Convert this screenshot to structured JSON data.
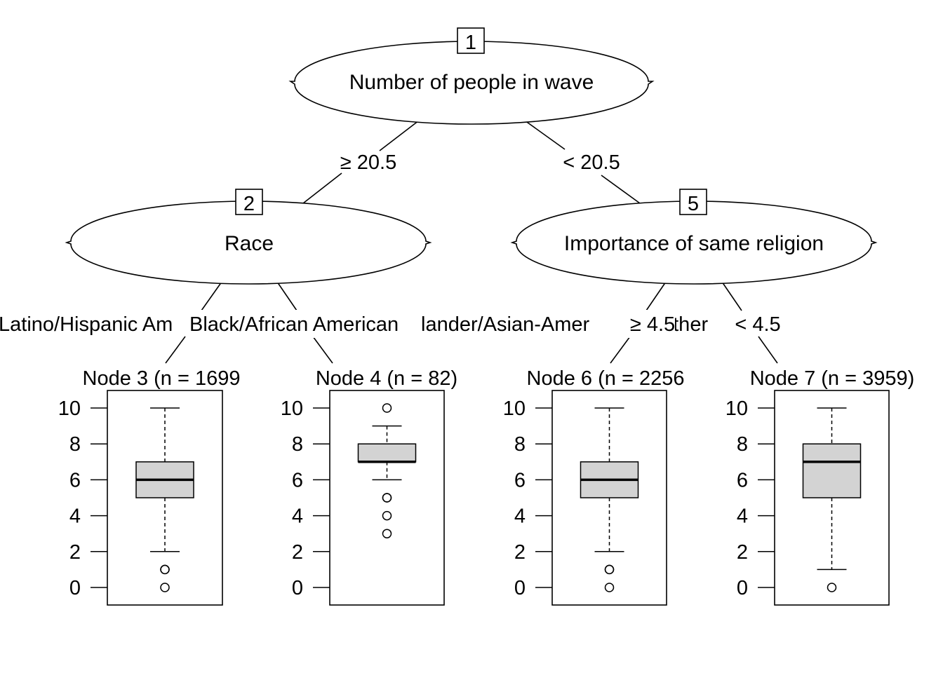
{
  "tree": {
    "inner_nodes": [
      {
        "id": "1",
        "label": "Number of people in wave"
      },
      {
        "id": "2",
        "label": "Race"
      },
      {
        "id": "5",
        "label": "Importance of same religion"
      }
    ],
    "edges": [
      {
        "from": "1",
        "to": "2",
        "label": "≥ 20.5"
      },
      {
        "from": "1",
        "to": "5",
        "label": "< 20.5"
      },
      {
        "from": "2",
        "to": "3",
        "label": "Latino/Hispanic Am"
      },
      {
        "from": "2",
        "to": "4",
        "label": "Black/African American"
      },
      {
        "from": "2",
        "to": "4",
        "label": "lander/Asian-Amer"
      },
      {
        "from": "2",
        "to": "4",
        "label": "other"
      },
      {
        "from": "5",
        "to": "6",
        "label": "≥ 4.5"
      },
      {
        "from": "5",
        "to": "7",
        "label": "< 4.5"
      }
    ],
    "terminal_nodes": [
      {
        "id": "3",
        "title": "Node 3 (n = 1699",
        "n": 1699
      },
      {
        "id": "4",
        "title": "Node 4 (n = 82)",
        "n": 82
      },
      {
        "id": "6",
        "title": "Node 6 (n = 2256",
        "n": 2256
      },
      {
        "id": "7",
        "title": "Node 7 (n = 3959)",
        "n": 3959
      }
    ]
  },
  "chart_data": {
    "type": "boxplot",
    "ylim": [
      0,
      10
    ],
    "yticks": [
      "0",
      "2",
      "4",
      "6",
      "8",
      "10"
    ],
    "box_fill": "#d3d3d3",
    "panels": [
      {
        "node": "3",
        "lower_whisker": 2,
        "q1": 5,
        "median": 6,
        "q3": 7,
        "upper_whisker": 10,
        "outliers": [
          1,
          1,
          0
        ]
      },
      {
        "node": "4",
        "lower_whisker": 6,
        "q1": 7,
        "median": 7,
        "q3": 8,
        "upper_whisker": 9,
        "outliers": [
          10,
          5,
          5,
          4,
          3
        ]
      },
      {
        "node": "6",
        "lower_whisker": 2,
        "q1": 5,
        "median": 6,
        "q3": 7,
        "upper_whisker": 10,
        "outliers": [
          1,
          1,
          0
        ]
      },
      {
        "node": "7",
        "lower_whisker": 1,
        "q1": 5,
        "median": 7,
        "q3": 8,
        "upper_whisker": 10,
        "outliers": [
          0
        ]
      }
    ]
  }
}
